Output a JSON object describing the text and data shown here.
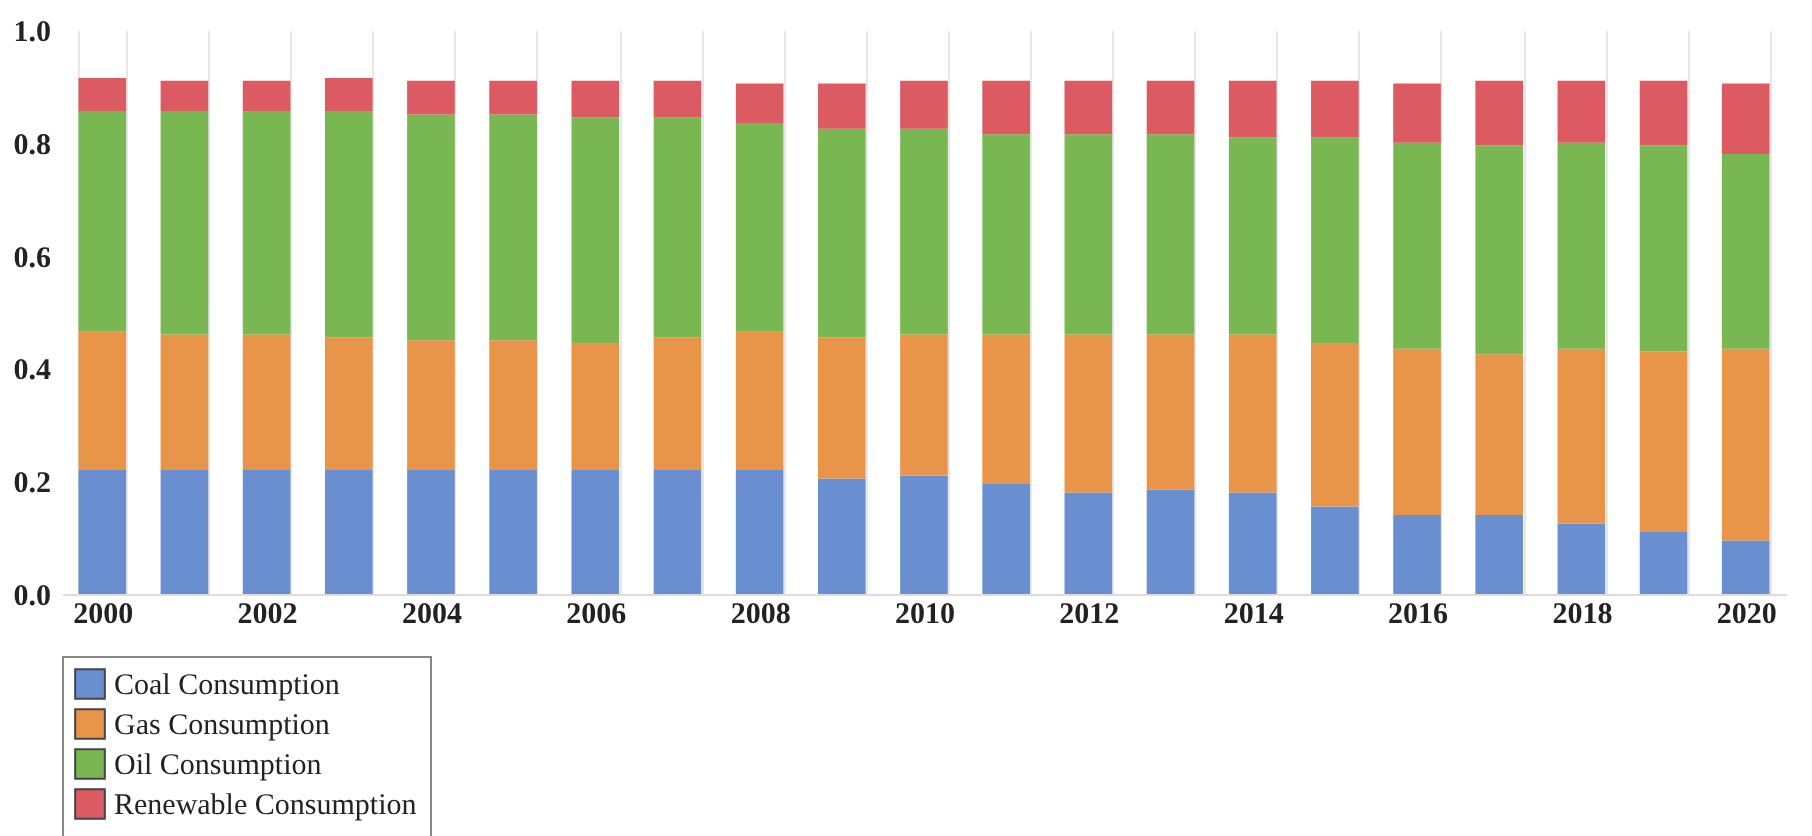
{
  "chart_data": {
    "type": "bar",
    "stacked": true,
    "categories": [
      "2000",
      null,
      "2002",
      null,
      "2004",
      null,
      "2006",
      null,
      "2008",
      null,
      "2010",
      null,
      "2012",
      null,
      "2014",
      null,
      "2016",
      null,
      "2018",
      null,
      "2020"
    ],
    "series": [
      {
        "name": "Coal Consumption",
        "color": "#6a8fd0",
        "values": [
          0.22,
          0.22,
          0.22,
          0.22,
          0.22,
          0.22,
          0.22,
          0.22,
          0.22,
          0.205,
          0.21,
          0.195,
          0.18,
          0.185,
          0.18,
          0.155,
          0.14,
          0.14,
          0.125,
          0.11,
          0.095
        ]
      },
      {
        "name": "Gas Consumption",
        "color": "#e8954a",
        "values": [
          0.245,
          0.24,
          0.24,
          0.235,
          0.23,
          0.23,
          0.225,
          0.235,
          0.245,
          0.25,
          0.25,
          0.265,
          0.28,
          0.275,
          0.28,
          0.29,
          0.295,
          0.285,
          0.31,
          0.32,
          0.34
        ]
      },
      {
        "name": "Oil Consumption",
        "color": "#79b753",
        "values": [
          0.39,
          0.395,
          0.395,
          0.4,
          0.4,
          0.4,
          0.4,
          0.39,
          0.37,
          0.37,
          0.365,
          0.355,
          0.355,
          0.355,
          0.35,
          0.365,
          0.365,
          0.37,
          0.365,
          0.365,
          0.345
        ]
      },
      {
        "name": "Renewable Consumption",
        "color": "#dc5a62",
        "values": [
          0.06,
          0.055,
          0.055,
          0.06,
          0.06,
          0.06,
          0.065,
          0.065,
          0.07,
          0.08,
          0.085,
          0.095,
          0.095,
          0.095,
          0.1,
          0.1,
          0.105,
          0.115,
          0.11,
          0.115,
          0.125
        ]
      }
    ],
    "ylim": [
      0,
      1.0
    ],
    "yticks": [
      {
        "value": 0,
        "label": "0.0"
      },
      {
        "value": 0.2,
        "label": "0.2"
      },
      {
        "value": 0.4,
        "label": "0.4"
      },
      {
        "value": 0.6,
        "label": "0.6"
      },
      {
        "value": 0.8,
        "label": "0.8"
      },
      {
        "value": 1.0,
        "label": "1.0"
      }
    ],
    "grid": "x",
    "legend": "bottom"
  }
}
